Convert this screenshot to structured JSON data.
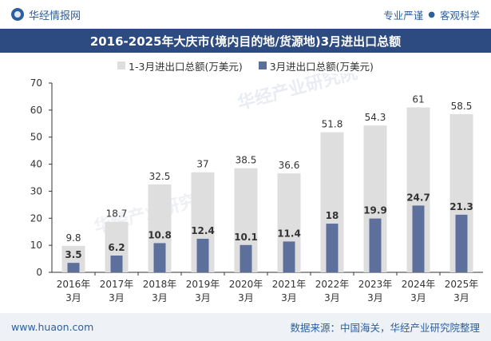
{
  "header": {
    "brand": "华经情报网",
    "slogan_left": "专业严谨",
    "slogan_sep": "●",
    "slogan_right": "客观科学"
  },
  "watermark": "华经产业研究院",
  "footer": {
    "url": "www.huaon.com",
    "source": "数据来源：中国海关，华经产业研究院整理"
  },
  "chart_data": {
    "type": "bar",
    "title": "2016-2025年大庆市(境内目的地/货源地)3月进出口总额",
    "categories": [
      [
        "2016年",
        "3月"
      ],
      [
        "2017年",
        "3月"
      ],
      [
        "2018年",
        "3月"
      ],
      [
        "2019年",
        "3月"
      ],
      [
        "2020年",
        "3月"
      ],
      [
        "2021年",
        "3月"
      ],
      [
        "2022年",
        "3月"
      ],
      [
        "2023年",
        "3月"
      ],
      [
        "2024年",
        "3月"
      ],
      [
        "2025年",
        "3月"
      ]
    ],
    "series": [
      {
        "name": "1-3月进出口总额(万美元)",
        "values": [
          9.8,
          18.7,
          32.5,
          37,
          38.5,
          36.6,
          51.8,
          54.3,
          61,
          58.5
        ],
        "color": "#dedede"
      },
      {
        "name": "3月进出口总额(万美元)",
        "values": [
          3.5,
          6.2,
          10.8,
          12.4,
          10.1,
          11.4,
          18,
          19.9,
          24.7,
          21.3
        ],
        "color": "#5d709c"
      }
    ],
    "yticks": [
      0,
      10,
      20,
      30,
      40,
      50,
      60,
      70
    ],
    "ylim": [
      0,
      70
    ],
    "grid": false,
    "legend_position": "top-center",
    "xlabel": "",
    "ylabel": ""
  }
}
